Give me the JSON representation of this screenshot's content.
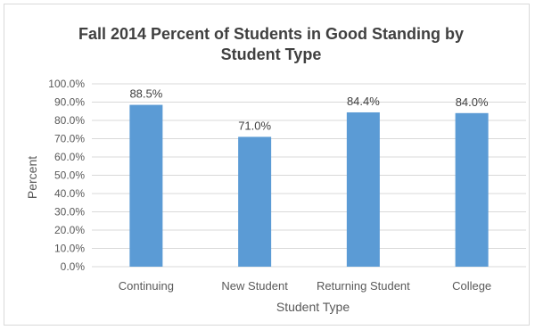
{
  "chart_data": {
    "type": "bar",
    "title_lines": [
      "Fall 2014 Percent of Students in Good Standing by",
      "Student Type"
    ],
    "xlabel": "Student Type",
    "ylabel": "Percent",
    "categories": [
      "Continuing",
      "New Student",
      "Returning Student",
      "College"
    ],
    "values": [
      88.5,
      71.0,
      84.4,
      84.0
    ],
    "data_labels": [
      "88.5%",
      "71.0%",
      "84.4%",
      "84.0%"
    ],
    "ylim": [
      0,
      100
    ],
    "yticks": [
      0,
      10,
      20,
      30,
      40,
      50,
      60,
      70,
      80,
      90,
      100
    ],
    "ytick_labels": [
      "0.0%",
      "10.0%",
      "20.0%",
      "30.0%",
      "40.0%",
      "50.0%",
      "60.0%",
      "70.0%",
      "80.0%",
      "90.0%",
      "100.0%"
    ],
    "grid": true,
    "bar_color": "#5b9bd5",
    "grid_color": "#d9d9d9"
  }
}
